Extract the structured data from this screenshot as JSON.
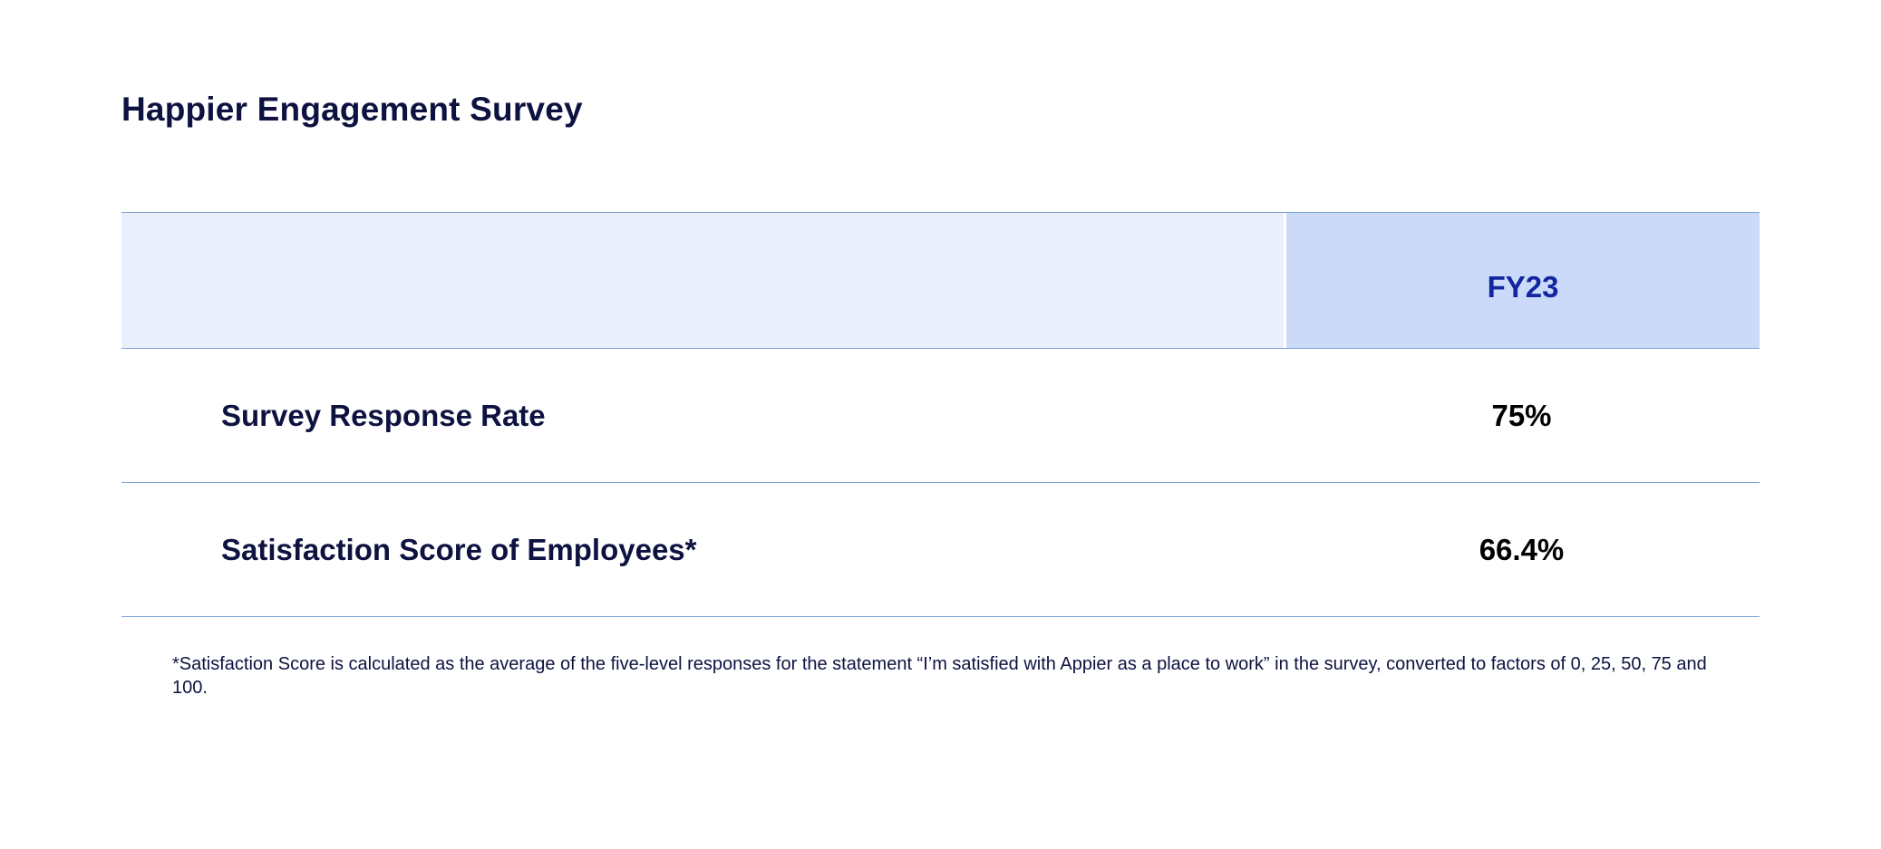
{
  "page": {
    "title": "Happier Engagement Survey"
  },
  "table": {
    "header": {
      "label": "",
      "value": "FY23"
    },
    "rows": [
      {
        "label": "Survey Response Rate",
        "value": "75%"
      },
      {
        "label": "Satisfaction Score of Employees*",
        "value": "66.4%"
      }
    ]
  },
  "footnote": "*Satisfaction Score is calculated as the average of the five-level responses for the statement “I’m satisfied with Appier as a place to work” in the survey, converted to factors of 0, 25, 50, 75 and 100.",
  "colors": {
    "title_text": "#0d1240",
    "header_label_bg": "#e9effc",
    "header_value_bg": "#cbdaf8",
    "header_value_text": "#1226a0",
    "rule_line": "#7fa3d6"
  }
}
